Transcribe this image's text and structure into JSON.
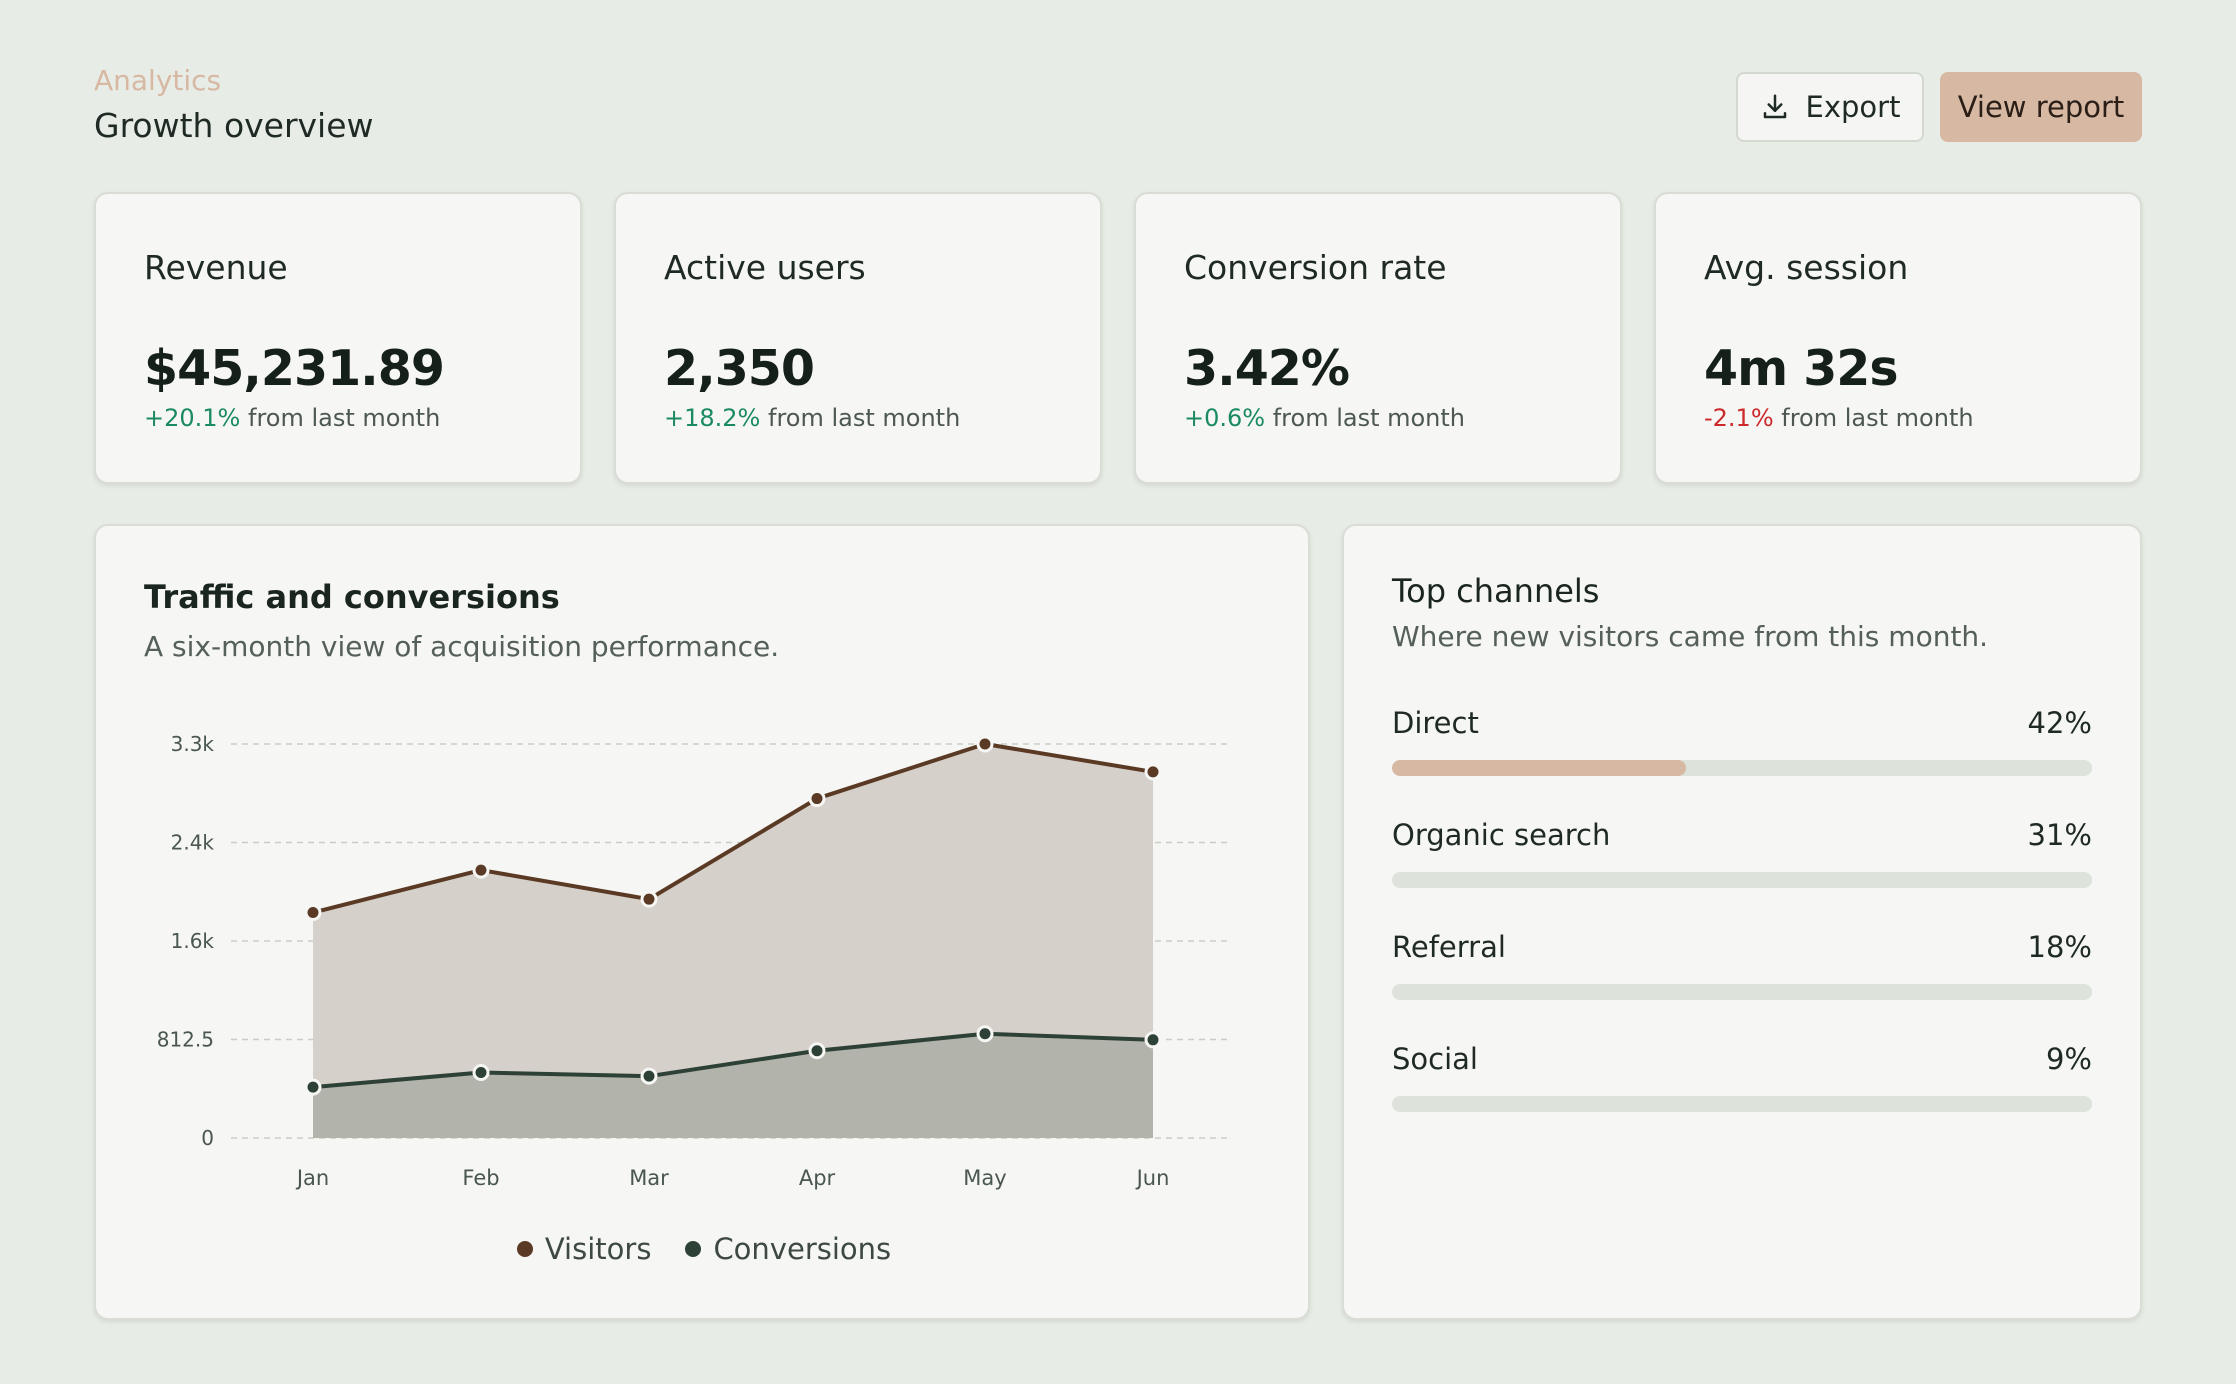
{
  "header": {
    "eyebrow": "Analytics",
    "title": "Growth overview",
    "export_label": "Export",
    "view_report_label": "View report"
  },
  "stats": [
    {
      "label": "Revenue",
      "value": "$45,231.89",
      "delta": "+20.1%",
      "delta_suffix": " from last month",
      "trend": "up"
    },
    {
      "label": "Active users",
      "value": "2,350",
      "delta": "+18.2%",
      "delta_suffix": " from last month",
      "trend": "up"
    },
    {
      "label": "Conversion rate",
      "value": "3.42%",
      "delta": "+0.6%",
      "delta_suffix": " from last month",
      "trend": "up"
    },
    {
      "label": "Avg. session",
      "value": "4m 32s",
      "delta": "-2.1%",
      "delta_suffix": " from last month",
      "trend": "down"
    }
  ],
  "chart_card": {
    "title": "Traffic and conversions",
    "subtitle": "A six-month view of acquisition performance."
  },
  "chart_data": {
    "type": "area",
    "categories": [
      "Jan",
      "Feb",
      "Mar",
      "Apr",
      "May",
      "Jun"
    ],
    "series": [
      {
        "name": "Visitors",
        "values": [
          1860,
          2210,
          1970,
          2800,
          3250,
          3020
        ],
        "color": "#5a3a24",
        "fill": "#d6d0ca"
      },
      {
        "name": "Conversions",
        "values": [
          420,
          540,
          510,
          720,
          860,
          810
        ],
        "color": "#2d4136",
        "fill": "#b2b3ab"
      }
    ],
    "y_ticks": [
      "0",
      "812.5",
      "1.6k",
      "2.4k",
      "3.3k"
    ],
    "ylim": [
      0,
      3250
    ],
    "grid": true,
    "legend": "bottom-center"
  },
  "channels": {
    "title": "Top channels",
    "subtitle": "Where new visitors came from this month.",
    "items": [
      {
        "name": "Direct",
        "pct_label": "42%",
        "pct": 42,
        "active": true
      },
      {
        "name": "Organic search",
        "pct_label": "31%",
        "pct": 31,
        "active": false
      },
      {
        "name": "Referral",
        "pct_label": "18%",
        "pct": 18,
        "active": false
      },
      {
        "name": "Social",
        "pct_label": "9%",
        "pct": 9,
        "active": false
      }
    ],
    "fill_color": "#d6b8a3"
  },
  "colors": {
    "accent": "#d6b8a3",
    "positive": "#1a8a63",
    "negative": "#cc2a2a",
    "background": "#e8ece6"
  }
}
